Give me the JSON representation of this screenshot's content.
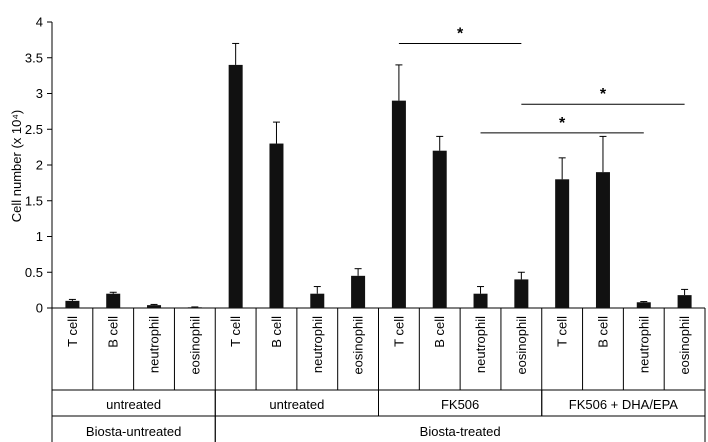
{
  "chart_data": {
    "type": "bar",
    "ylabel": "Cell number (x 10⁴)",
    "ylim": [
      0,
      4
    ],
    "yticks": [
      0,
      0.5,
      1,
      1.5,
      2,
      2.5,
      3,
      3.5,
      4
    ],
    "ytick_labels": [
      "0",
      "0.5",
      "1",
      "1.5",
      "2",
      "2.5",
      "3",
      "3.5",
      "4"
    ],
    "bar_color": "#111111",
    "grid": false,
    "categories": [
      "T cell",
      "B cell",
      "neutrophil",
      "eosinophil",
      "T cell",
      "B cell",
      "neutrophil",
      "eosinophil",
      "T cell",
      "B cell",
      "neutrophil",
      "eosinophil",
      "T cell",
      "B cell",
      "neutrophil",
      "eosinophil"
    ],
    "values": [
      0.1,
      0.2,
      0.04,
      0.01,
      3.4,
      2.3,
      0.2,
      0.45,
      2.9,
      2.2,
      0.2,
      0.4,
      1.8,
      1.9,
      0.08,
      0.18
    ],
    "errors": [
      0.02,
      0.02,
      0.01,
      0.005,
      0.3,
      0.3,
      0.1,
      0.1,
      0.5,
      0.2,
      0.1,
      0.1,
      0.3,
      0.5,
      0.01,
      0.08
    ],
    "group_level1": [
      {
        "label": "untreated",
        "start": 0,
        "end": 3
      },
      {
        "label": "untreated",
        "start": 4,
        "end": 7
      },
      {
        "label": "FK506",
        "start": 8,
        "end": 11
      },
      {
        "label": "FK506 + DHA/EPA",
        "start": 12,
        "end": 15
      }
    ],
    "group_level2": [
      {
        "label": "Biosta-untreated",
        "start": 0,
        "end": 3
      },
      {
        "label": "Biosta-treated",
        "start": 4,
        "end": 15
      }
    ],
    "significance": [
      {
        "from": 8,
        "to": 11,
        "y": 3.7,
        "label": "*"
      },
      {
        "from": 11,
        "to": 15,
        "y": 2.85,
        "label": "*"
      },
      {
        "from": 10,
        "to": 14,
        "y": 2.45,
        "label": "*"
      }
    ]
  }
}
